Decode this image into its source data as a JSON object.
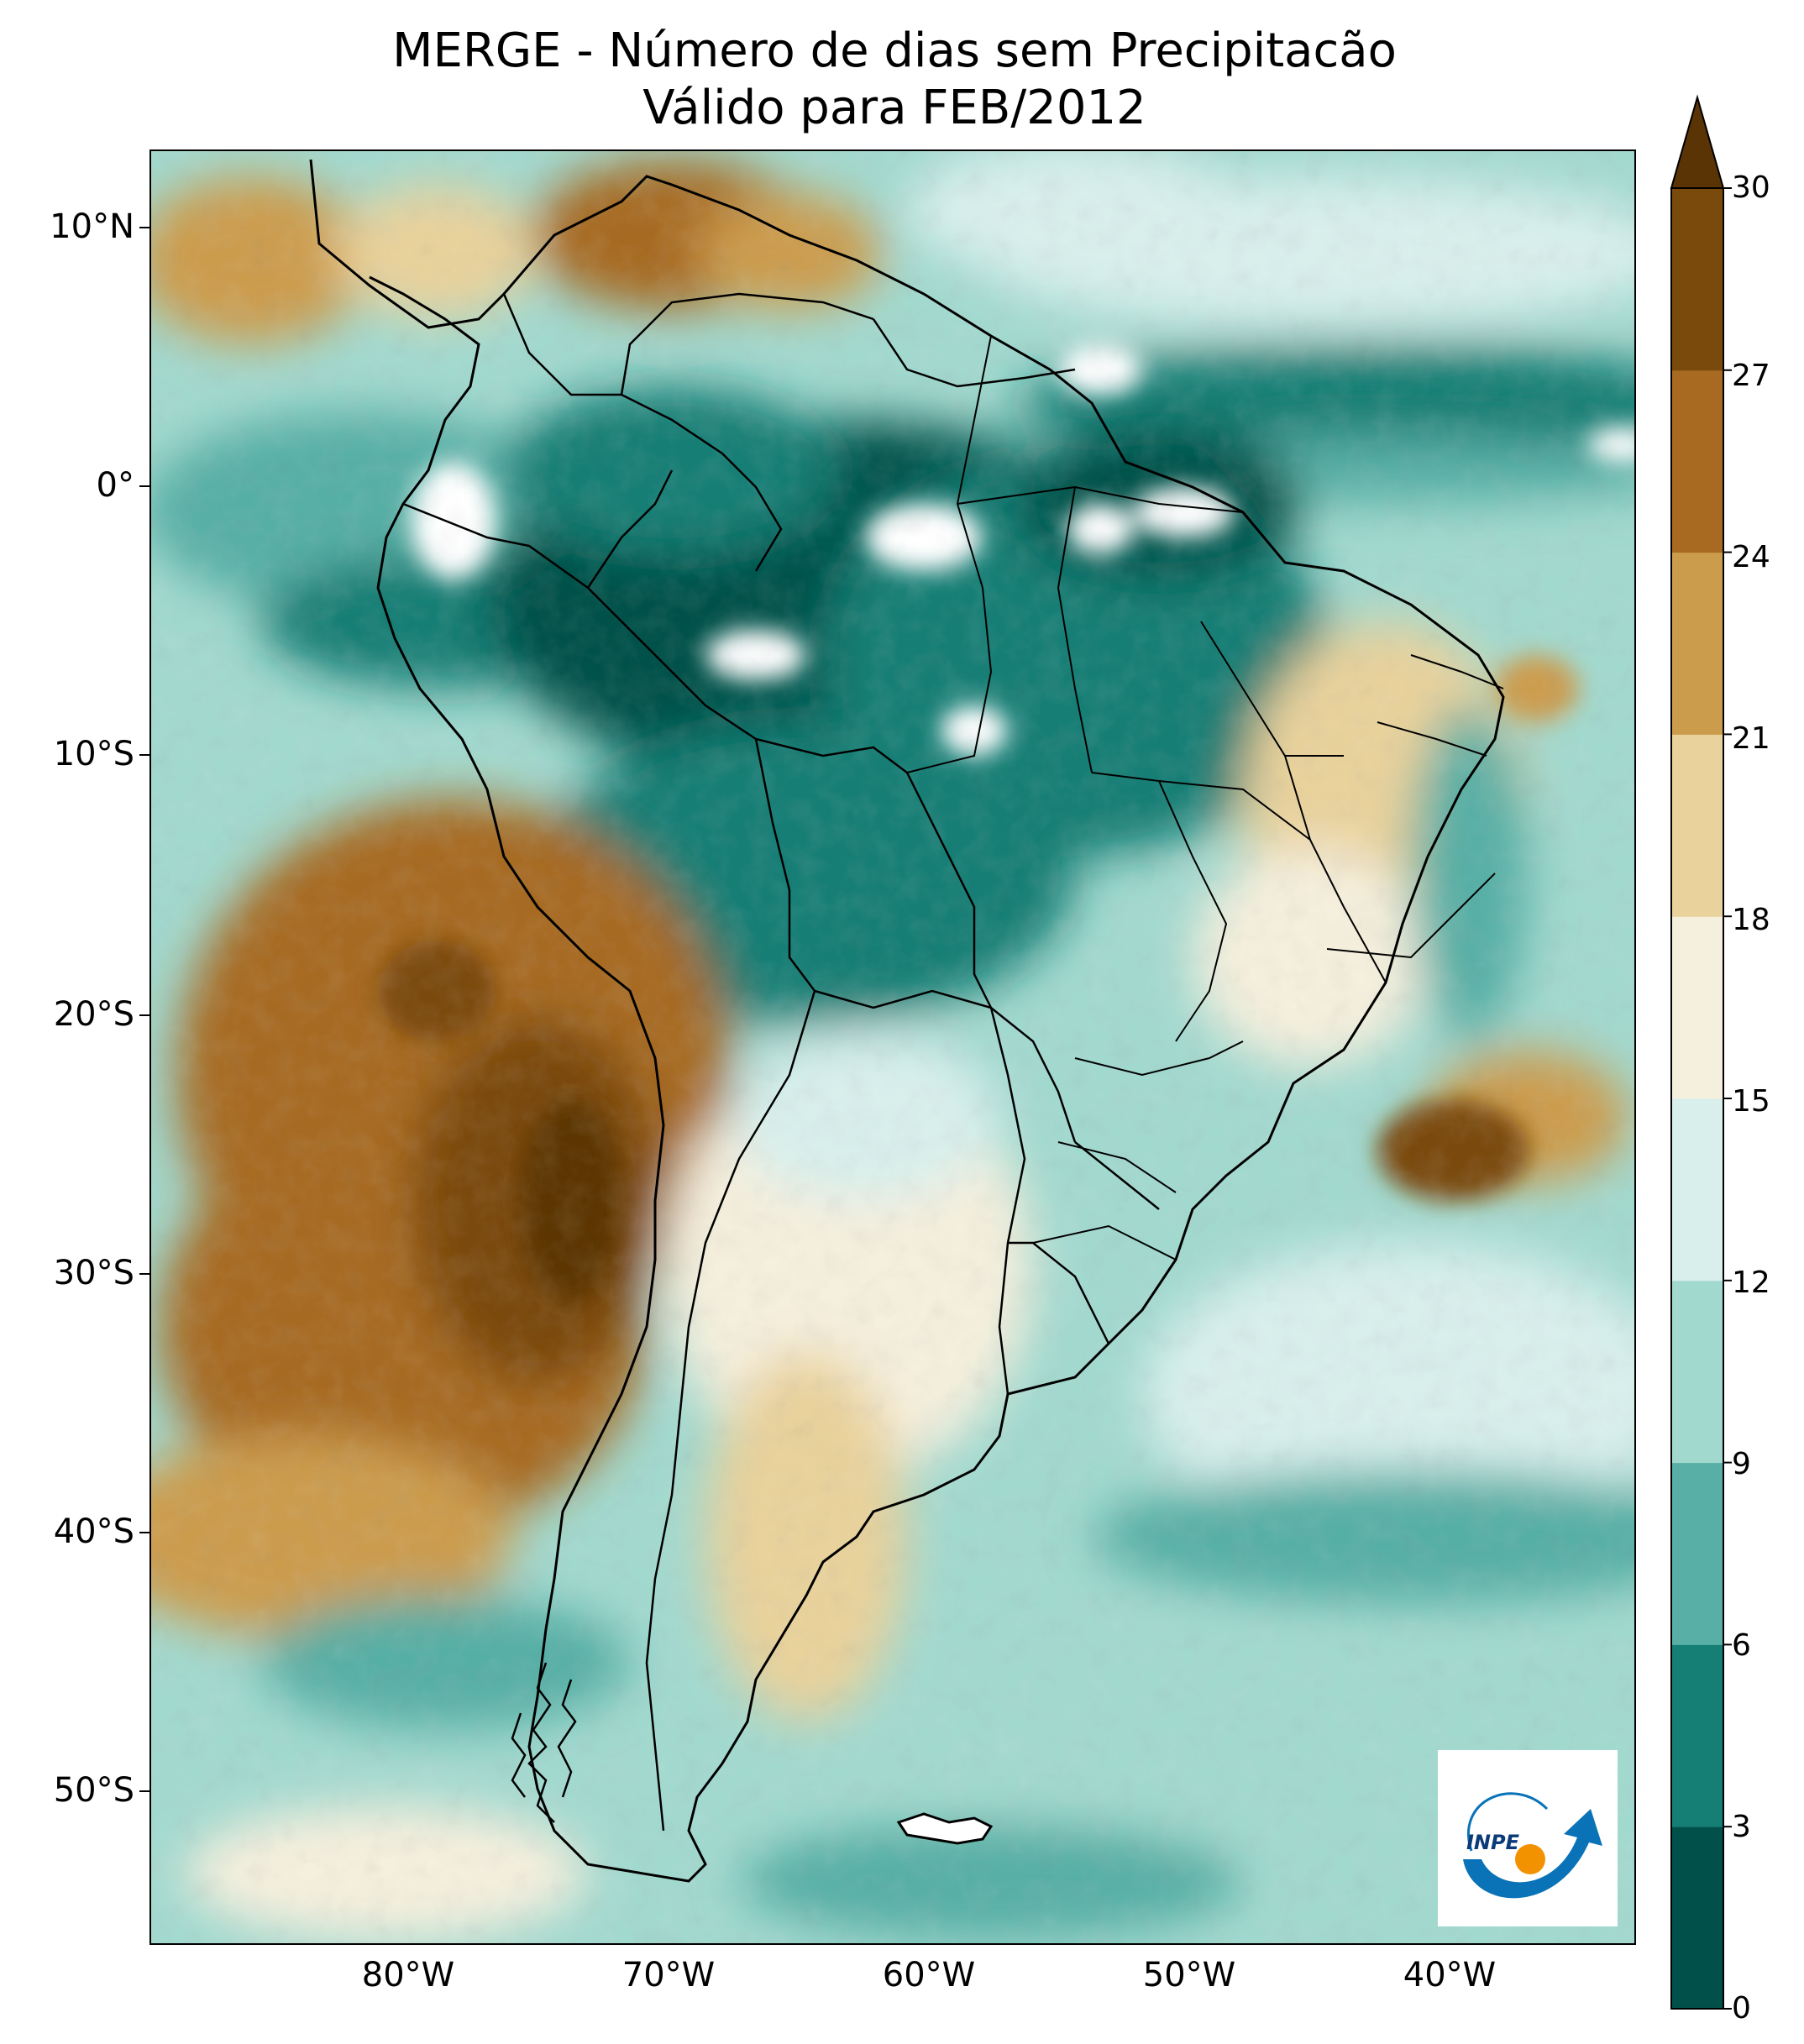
{
  "title": {
    "line1": "MERGE - Número de dias sem Precipitacão",
    "line2": "Válido para FEB/2012"
  },
  "map": {
    "region": "South America",
    "variable": "Número de dias sem Precipitação",
    "lon_range": [
      -90,
      -32
    ],
    "lat_range": [
      -57,
      13
    ],
    "lat_labels": [
      {
        "value": 10,
        "text": "10°N"
      },
      {
        "value": 0,
        "text": "0°"
      },
      {
        "value": -10,
        "text": "10°S"
      },
      {
        "value": -20,
        "text": "20°S"
      },
      {
        "value": -30,
        "text": "30°S"
      },
      {
        "value": -40,
        "text": "40°S"
      },
      {
        "value": -50,
        "text": "50°S"
      }
    ],
    "lon_labels": [
      {
        "value": -80,
        "text": "80°W"
      },
      {
        "value": -70,
        "text": "70°W"
      },
      {
        "value": -60,
        "text": "60°W"
      },
      {
        "value": -50,
        "text": "50°W"
      },
      {
        "value": -40,
        "text": "40°W"
      }
    ]
  },
  "colorbar": {
    "ticks": [
      "0",
      "3",
      "6",
      "9",
      "12",
      "15",
      "18",
      "21",
      "24",
      "27",
      "30"
    ],
    "colors": [
      "#01514a",
      "#157e75",
      "#57afa5",
      "#a2d9cf",
      "#d8efec",
      "#f5efdd",
      "#e9d29b",
      "#cc9c4d",
      "#a76a20",
      "#7a4a0c"
    ],
    "extend_color": "#5b3406",
    "extend": "max"
  },
  "logo": {
    "text": "INPE",
    "accent_blue": "#0a73b8",
    "accent_orange": "#f39200"
  }
}
